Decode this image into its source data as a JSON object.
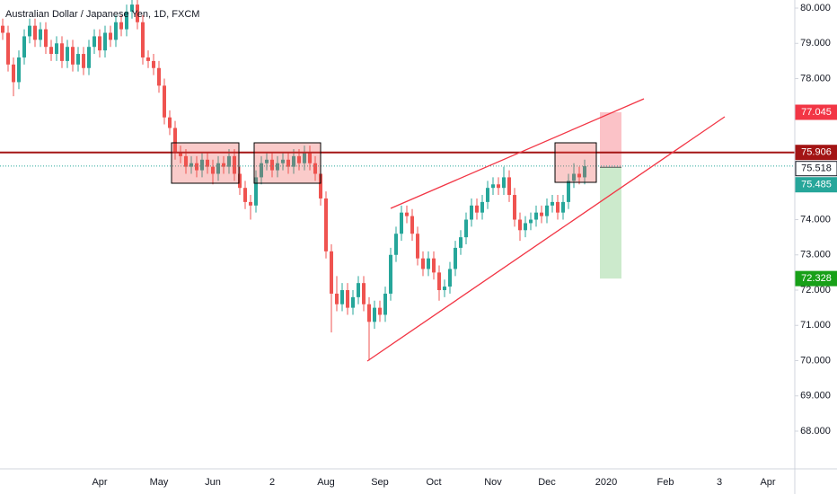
{
  "chart_data": {
    "type": "candlestick",
    "title": "Australian Dollar / Japanese Yen, 1D, FXCM",
    "categories": [
      null,
      null,
      null,
      null,
      null,
      null,
      null,
      null,
      null,
      null,
      null,
      null,
      null,
      null,
      null,
      null,
      null,
      null,
      "Apr",
      null,
      null,
      null,
      null,
      null,
      null,
      null,
      null,
      null,
      null,
      "May",
      null,
      null,
      null,
      null,
      null,
      null,
      null,
      null,
      null,
      "Jun",
      null,
      null,
      null,
      null,
      null,
      null,
      null,
      null,
      null,
      null,
      "2",
      null,
      null,
      null,
      null,
      null,
      null,
      null,
      null,
      null,
      "Aug",
      null,
      null,
      null,
      null,
      null,
      null,
      null,
      null,
      null,
      "Sep",
      null,
      null,
      null,
      null,
      null,
      null,
      null,
      null,
      null,
      "Oct",
      null,
      null,
      null,
      null,
      null,
      null,
      null,
      null,
      null,
      null,
      "Nov",
      null,
      null,
      null,
      null,
      null,
      null,
      null,
      null,
      null,
      "Dec",
      null,
      null,
      null,
      null,
      null,
      null,
      null,
      null,
      null,
      null,
      "2020",
      null,
      null,
      null,
      null,
      null,
      null,
      null,
      null,
      null,
      null,
      "Feb",
      null,
      null,
      null,
      null,
      null,
      null,
      null,
      null,
      null,
      "3",
      null,
      null,
      null,
      null,
      null,
      null,
      null,
      null,
      "Apr",
      null,
      null,
      null,
      null
    ],
    "values": [
      [
        79.5,
        79.7,
        79.1,
        79.3
      ],
      [
        79.3,
        79.5,
        78.2,
        78.4
      ],
      [
        78.4,
        78.6,
        77.5,
        77.9
      ],
      [
        77.9,
        78.8,
        77.7,
        78.6
      ],
      [
        78.6,
        79.4,
        78.4,
        79.2
      ],
      [
        79.2,
        79.7,
        79.0,
        79.5
      ],
      [
        79.5,
        79.7,
        78.9,
        79.1
      ],
      [
        79.1,
        79.6,
        78.9,
        79.4
      ],
      [
        79.4,
        79.6,
        78.7,
        78.9
      ],
      [
        78.9,
        79.1,
        78.5,
        78.7
      ],
      [
        78.7,
        79.2,
        78.5,
        79.0
      ],
      [
        79.0,
        79.2,
        78.3,
        78.5
      ],
      [
        78.5,
        79.1,
        78.3,
        78.9
      ],
      [
        78.9,
        79.1,
        78.2,
        78.4
      ],
      [
        78.4,
        78.9,
        78.2,
        78.7
      ],
      [
        78.7,
        78.9,
        78.1,
        78.3
      ],
      [
        78.3,
        79.1,
        78.1,
        78.9
      ],
      [
        78.9,
        79.4,
        78.7,
        79.2
      ],
      [
        79.2,
        79.4,
        78.6,
        78.8
      ],
      [
        78.8,
        79.5,
        78.6,
        79.3
      ],
      [
        79.3,
        79.5,
        78.9,
        79.1
      ],
      [
        79.1,
        79.8,
        78.9,
        79.6
      ],
      [
        79.6,
        79.8,
        79.2,
        79.4
      ],
      [
        79.4,
        80.1,
        79.2,
        79.9
      ],
      [
        79.9,
        80.3,
        79.7,
        80.1
      ],
      [
        80.1,
        80.3,
        79.4,
        79.6
      ],
      [
        79.6,
        79.8,
        78.4,
        78.6
      ],
      [
        78.6,
        78.8,
        78.3,
        78.5
      ],
      [
        78.5,
        78.7,
        78.1,
        78.3
      ],
      [
        78.3,
        78.5,
        77.6,
        77.8
      ],
      [
        77.8,
        78.0,
        76.7,
        76.9
      ],
      [
        76.9,
        77.1,
        76.4,
        76.6
      ],
      [
        76.6,
        76.8,
        75.7,
        75.9
      ],
      [
        75.9,
        76.1,
        75.6,
        75.8
      ],
      [
        75.8,
        76.0,
        75.3,
        75.5
      ],
      [
        75.5,
        75.8,
        75.3,
        75.6
      ],
      [
        75.6,
        75.8,
        75.2,
        75.4
      ],
      [
        75.4,
        75.9,
        75.2,
        75.7
      ],
      [
        75.7,
        75.9,
        75.3,
        75.5
      ],
      [
        75.5,
        75.7,
        75.0,
        75.3
      ],
      [
        75.3,
        75.8,
        75.1,
        75.6
      ],
      [
        75.6,
        75.8,
        75.3,
        75.5
      ],
      [
        75.5,
        76.0,
        75.3,
        75.8
      ],
      [
        75.8,
        76.0,
        75.1,
        75.3
      ],
      [
        75.3,
        75.5,
        74.7,
        74.9
      ],
      [
        74.9,
        75.1,
        74.3,
        74.5
      ],
      [
        74.5,
        74.7,
        74.0,
        74.4
      ],
      [
        74.4,
        75.4,
        74.2,
        75.2
      ],
      [
        75.2,
        75.8,
        75.0,
        75.6
      ],
      [
        75.6,
        75.9,
        75.4,
        75.7
      ],
      [
        75.7,
        75.9,
        75.2,
        75.4
      ],
      [
        75.4,
        75.8,
        75.2,
        75.6
      ],
      [
        75.6,
        75.9,
        75.4,
        75.7
      ],
      [
        75.7,
        75.9,
        75.3,
        75.5
      ],
      [
        75.5,
        76.0,
        75.3,
        75.8
      ],
      [
        75.8,
        76.0,
        75.4,
        75.6
      ],
      [
        75.6,
        76.1,
        75.4,
        75.9
      ],
      [
        75.9,
        76.1,
        75.4,
        75.6
      ],
      [
        75.6,
        75.8,
        75.1,
        75.3
      ],
      [
        75.3,
        75.5,
        74.4,
        74.6
      ],
      [
        74.6,
        74.8,
        72.9,
        73.1
      ],
      [
        73.1,
        73.3,
        70.8,
        71.9
      ],
      [
        71.9,
        72.4,
        71.4,
        71.6
      ],
      [
        71.6,
        72.2,
        71.4,
        72.0
      ],
      [
        72.0,
        72.2,
        71.3,
        71.5
      ],
      [
        71.5,
        72.0,
        71.3,
        71.8
      ],
      [
        71.8,
        72.4,
        71.6,
        72.2
      ],
      [
        72.2,
        72.4,
        71.4,
        71.6
      ],
      [
        71.6,
        71.8,
        70.0,
        71.1
      ],
      [
        71.1,
        71.7,
        70.9,
        71.5
      ],
      [
        71.5,
        71.7,
        71.1,
        71.3
      ],
      [
        71.3,
        72.1,
        71.1,
        71.9
      ],
      [
        71.9,
        73.2,
        71.7,
        73.0
      ],
      [
        73.0,
        73.8,
        72.8,
        73.6
      ],
      [
        73.6,
        74.4,
        73.4,
        74.2
      ],
      [
        74.2,
        74.4,
        73.9,
        74.1
      ],
      [
        74.1,
        74.3,
        73.4,
        73.6
      ],
      [
        73.6,
        73.8,
        72.7,
        72.9
      ],
      [
        72.9,
        73.1,
        72.4,
        72.6
      ],
      [
        72.6,
        73.1,
        72.4,
        72.9
      ],
      [
        72.9,
        73.1,
        72.3,
        72.5
      ],
      [
        72.5,
        72.7,
        71.7,
        72.0
      ],
      [
        72.0,
        72.3,
        71.8,
        72.1
      ],
      [
        72.1,
        72.8,
        71.9,
        72.6
      ],
      [
        72.6,
        73.4,
        72.4,
        73.2
      ],
      [
        73.2,
        73.7,
        73.0,
        73.5
      ],
      [
        73.5,
        74.2,
        73.3,
        74.0
      ],
      [
        74.0,
        74.6,
        73.8,
        74.4
      ],
      [
        74.4,
        74.6,
        74.0,
        74.2
      ],
      [
        74.2,
        74.7,
        74.0,
        74.5
      ],
      [
        74.5,
        75.1,
        74.3,
        74.9
      ],
      [
        74.9,
        75.2,
        74.7,
        75.0
      ],
      [
        75.0,
        75.2,
        74.7,
        74.9
      ],
      [
        74.9,
        75.5,
        74.7,
        75.2
      ],
      [
        75.2,
        75.4,
        74.5,
        74.7
      ],
      [
        74.7,
        74.9,
        73.8,
        74.0
      ],
      [
        74.0,
        74.2,
        73.4,
        73.7
      ],
      [
        73.7,
        74.1,
        73.5,
        73.9
      ],
      [
        73.9,
        74.2,
        73.7,
        74.0
      ],
      [
        74.0,
        74.4,
        73.8,
        74.2
      ],
      [
        74.2,
        74.4,
        73.9,
        74.1
      ],
      [
        74.1,
        74.6,
        73.9,
        74.4
      ],
      [
        74.4,
        74.7,
        74.2,
        74.5
      ],
      [
        74.5,
        74.7,
        74.0,
        74.2
      ],
      [
        74.2,
        74.7,
        74.0,
        74.5
      ],
      [
        74.5,
        75.3,
        74.3,
        75.1
      ],
      [
        75.1,
        75.6,
        74.9,
        75.3
      ],
      [
        75.3,
        75.5,
        75.0,
        75.2
      ],
      [
        75.2,
        75.7,
        75.0,
        75.518
      ],
      null,
      null,
      null,
      null,
      null,
      null,
      null,
      null,
      null,
      null,
      null,
      null,
      null,
      null,
      null,
      null,
      null,
      null,
      null,
      null,
      null,
      null,
      null,
      null,
      null,
      null,
      null,
      null,
      null,
      null,
      null,
      null,
      null,
      null,
      null,
      null,
      null,
      null
    ],
    "up_color": "#26a69a",
    "down_color": "#ef5350",
    "ylim": [
      66.93,
      80.23
    ],
    "yticks": [
      {
        "value": 68,
        "label": "68.000"
      },
      {
        "value": 69,
        "label": "69.000"
      },
      {
        "value": 70,
        "label": "70.000"
      },
      {
        "value": 71,
        "label": "71.000"
      },
      {
        "value": 72,
        "label": "72.000"
      },
      {
        "value": 73,
        "label": "73.000"
      },
      {
        "value": 74,
        "label": "74.000"
      },
      {
        "value": 75,
        "label": "75.000"
      },
      {
        "value": 76,
        "label": "76.000"
      },
      {
        "value": 77,
        "label": "77.000"
      },
      {
        "value": 78,
        "label": "78.000"
      },
      {
        "value": 79,
        "label": "79.000"
      },
      {
        "value": 80,
        "label": "80.000"
      }
    ],
    "grid": false,
    "horizontal_line": {
      "value": 75.906,
      "color": "#a31515"
    },
    "last_price": {
      "value": 75.518,
      "color": "#26a69a"
    },
    "position": {
      "stop": 77.045,
      "entry": 75.485,
      "target": 72.328,
      "stop_color": "#f23645",
      "entry_color": "#26a69a",
      "target_color": "#18a018"
    }
  }
}
